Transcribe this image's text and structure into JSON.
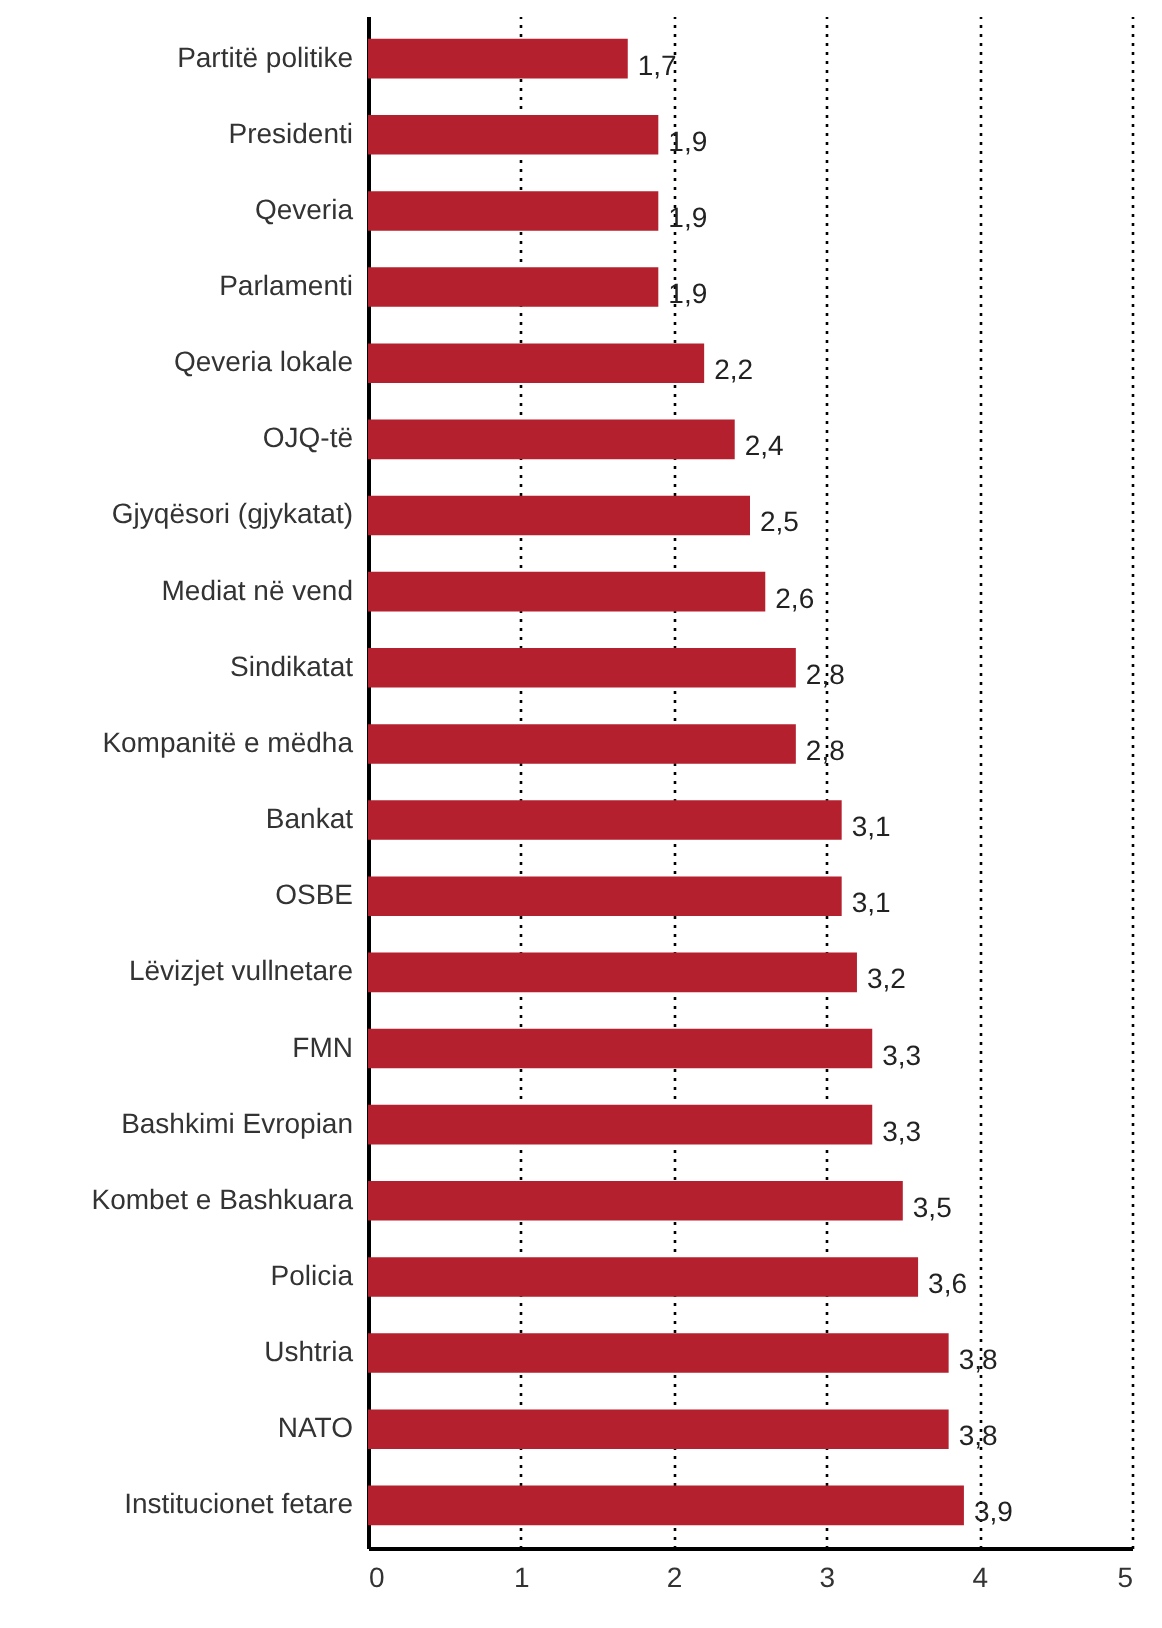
{
  "chart_data": {
    "type": "bar",
    "orientation": "horizontal",
    "categories": [
      "Partitë politike",
      "Presidenti",
      "Qeveria",
      "Parlamenti",
      "Qeveria lokale",
      "OJQ-të",
      "Gjyqësori (gjykatat)",
      "Mediat në vend",
      "Sindikatat",
      "Kompanitë e mëdha",
      "Bankat",
      "OSBE",
      "Lëvizjet vullnetare",
      "FMN",
      "Bashkimi Evropian",
      "Kombet e Bashkuara",
      "Policia",
      "Ushtria",
      "NATO",
      "Institucionet fetare"
    ],
    "values": [
      1.7,
      1.9,
      1.9,
      1.9,
      2.2,
      2.4,
      2.5,
      2.6,
      2.8,
      2.8,
      3.1,
      3.1,
      3.2,
      3.3,
      3.3,
      3.5,
      3.6,
      3.8,
      3.8,
      3.9
    ],
    "value_labels": [
      "1,7",
      "1,9",
      "1,9",
      "1,9",
      "2,2",
      "2,4",
      "2,5",
      "2,6",
      "2,8",
      "2,8",
      "3,1",
      "3,1",
      "3,2",
      "3,3",
      "3,3",
      "3,5",
      "3,6",
      "3,8",
      "3,8",
      "3,9"
    ],
    "color": "#b5202e",
    "xlim": [
      0,
      5
    ],
    "xticks": [
      0,
      1,
      2,
      3,
      4,
      5
    ],
    "grid": "x"
  }
}
